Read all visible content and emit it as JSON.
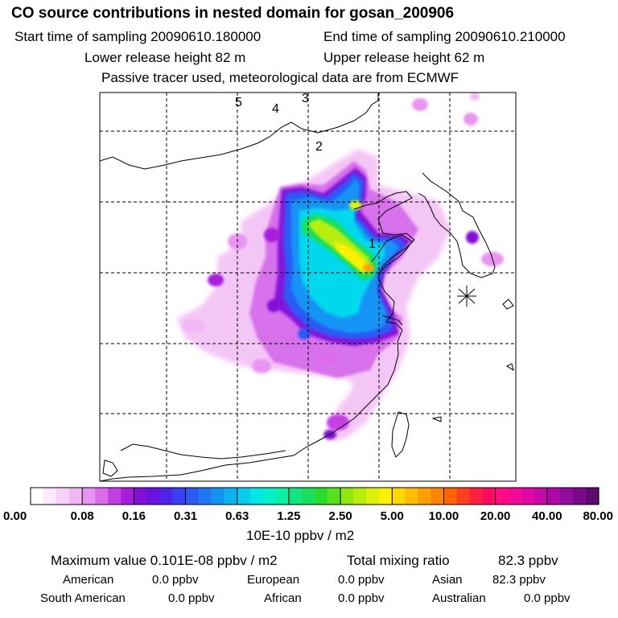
{
  "header": {
    "title": "CO  source contributions in nested domain for gosan_200906",
    "start_label": "Start time of sampling 20090610.180000",
    "end_label": "End time of sampling 20090610.210000",
    "lower_label": "Lower release height   82 m",
    "upper_label": "Upper release height   62 m",
    "tracer_label": "Passive tracer used, meteorological data are from ECMWF"
  },
  "chart_data": {
    "type": "heatmap",
    "title": "CO  source contributions in nested domain for gosan_200906",
    "units": "10E-10 ppbv / m2",
    "color_scale": {
      "ticks": [
        "0.00",
        "0.08",
        "0.16",
        "0.31",
        "0.63",
        "1.25",
        "2.50",
        "5.00",
        "10.00",
        "20.00",
        "40.00",
        "80.00"
      ],
      "colors": [
        "#ffffff",
        "#fde8fd",
        "#f8d0f9",
        "#f2b6f5",
        "#e894f0",
        "#da6cea",
        "#c43fe2",
        "#a81ddb",
        "#8410d8",
        "#6a12e0",
        "#4f24ea",
        "#3a40f2",
        "#2a5cf5",
        "#1e78f5",
        "#1394f5",
        "#0ab2f2",
        "#06ccee",
        "#03e6e6",
        "#05f0c8",
        "#0af0a4",
        "#10e680",
        "#18e05c",
        "#28dc2c",
        "#58e018",
        "#8ee810",
        "#b8ee0c",
        "#dcf008",
        "#fff000",
        "#ffd800",
        "#ffbc00",
        "#ffa000",
        "#ff8400",
        "#ff6400",
        "#ff4020",
        "#ff2040",
        "#ff0a60",
        "#ff0c84",
        "#f40a98",
        "#e008a4",
        "#c808a8",
        "#b008a8",
        "#940a9c",
        "#7a0a8a",
        "#5e0a70"
      ]
    },
    "markers": [
      {
        "label": "1",
        "role": "trajectory point"
      },
      {
        "label": "2",
        "role": "trajectory point"
      },
      {
        "label": "3",
        "role": "trajectory point"
      },
      {
        "label": "4",
        "role": "trajectory point"
      },
      {
        "label": "5",
        "role": "trajectory point"
      }
    ],
    "receptor": "gosan"
  },
  "stats": {
    "max_label": "Maximum value  0.101E-08 ppbv / m2",
    "total_label": "Total mixing ratio",
    "total_value": "82.3 ppbv",
    "regions": [
      {
        "name": "American",
        "value": "0.0 ppbv"
      },
      {
        "name": "European",
        "value": "0.0 ppbv"
      },
      {
        "name": "Asian",
        "value": "82.3 ppbv"
      },
      {
        "name": "South American",
        "value": "0.0 ppbv"
      },
      {
        "name": "African",
        "value": "0.0 ppbv"
      },
      {
        "name": "Australian",
        "value": "0.0 ppbv"
      }
    ]
  }
}
